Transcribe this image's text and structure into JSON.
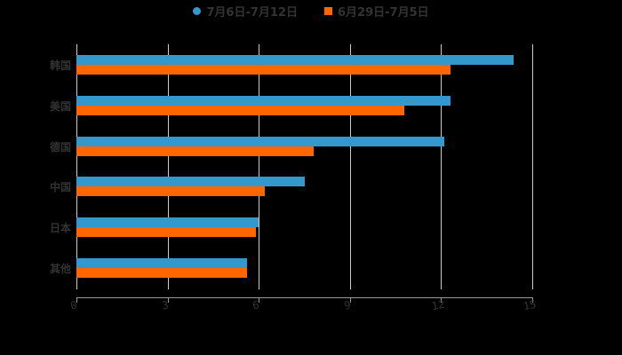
{
  "chart_data": {
    "type": "bar",
    "orientation": "horizontal",
    "title": "",
    "categories": [
      "韩国",
      "美国",
      "德国",
      "中国",
      "日本",
      "其他"
    ],
    "series": [
      {
        "name": "7月6日-7月12日",
        "color": "#3399cc",
        "values": [
          14.4,
          12.3,
          12.1,
          7.5,
          6.0,
          5.6
        ]
      },
      {
        "name": "6月29日-7月5日",
        "color": "#ff6600",
        "values": [
          12.3,
          10.8,
          7.8,
          6.2,
          5.9,
          5.6
        ]
      }
    ],
    "xlabel": "",
    "ylabel": "",
    "xlim": [
      0,
      15
    ],
    "xticks": [
      "0",
      "3",
      "6",
      "9",
      "12",
      "15"
    ],
    "grid": true,
    "legend_position": "top"
  },
  "legend": {
    "series1": "7月6日-7月12日",
    "series2": "6月29日-7月5日"
  }
}
